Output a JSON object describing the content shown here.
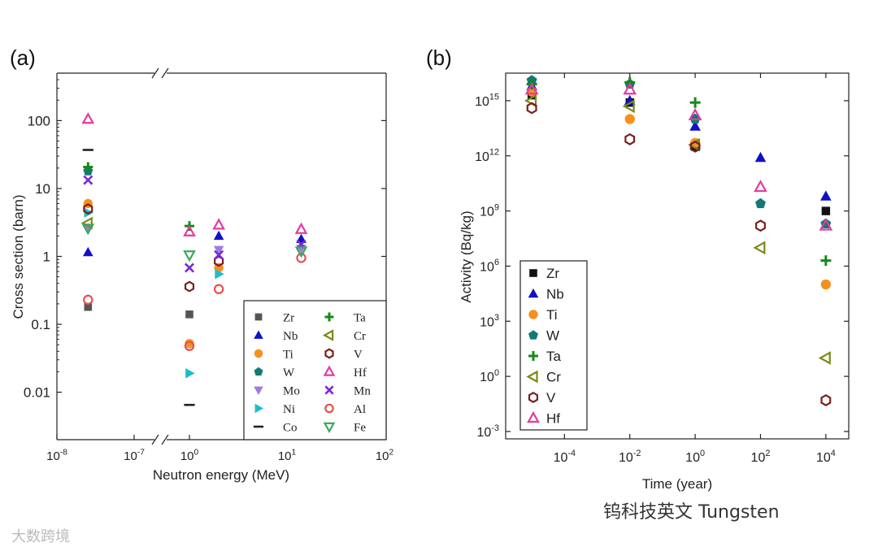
{
  "figure": {
    "panel_a_label": "(a)",
    "panel_b_label": "(b)",
    "watermark_right": "钨科技英文 Tungsten",
    "watermark_left": "大数跨境"
  },
  "chart_data": [
    {
      "type": "scatter",
      "panel": "(a)",
      "xlabel": "Neutron energy (MeV)",
      "ylabel": "Cross section (barn)",
      "xscale": "log (broken axis)",
      "yscale": "log",
      "ylim": [
        0.002,
        500
      ],
      "xticks_left": [
        "10^-8",
        "10^-7"
      ],
      "xticks_right": [
        "10^0",
        "10^1",
        "10^2"
      ],
      "yticks": [
        "0.01",
        "0.1",
        "1",
        "10",
        "100"
      ],
      "legend_position": "bottom-right",
      "energies": [
        "2.53e-8",
        "1",
        "2",
        "14"
      ],
      "series": [
        {
          "name": "Zr",
          "marker": "square",
          "color": "#555555",
          "values": [
            0.18,
            0.14,
            null,
            null
          ]
        },
        {
          "name": "Nb",
          "marker": "triangle-up",
          "color": "#1010c8",
          "values": [
            1.15,
            null,
            2.0,
            1.8
          ]
        },
        {
          "name": "Ti",
          "marker": "circle",
          "color": "#f5901e",
          "values": [
            6.0,
            0.052,
            0.68,
            null
          ]
        },
        {
          "name": "W",
          "marker": "pentagon",
          "color": "#127a73",
          "values": [
            18,
            null,
            null,
            null
          ]
        },
        {
          "name": "Mo",
          "marker": "triangle-down",
          "color": "#a07ae0",
          "values": [
            2.5,
            null,
            1.25,
            1.3
          ]
        },
        {
          "name": "Ni",
          "marker": "triangle-right",
          "color": "#20bcc8",
          "values": [
            4.4,
            0.019,
            0.55,
            null
          ]
        },
        {
          "name": "Co",
          "marker": "dash",
          "color": "#222222",
          "values": [
            37,
            0.0065,
            null,
            null
          ]
        },
        {
          "name": "Ta",
          "marker": "plus",
          "color": "#148a14",
          "values": [
            20.7,
            2.8,
            null,
            null
          ]
        },
        {
          "name": "Cr",
          "marker": "triangle-left-open",
          "color": "#7a8a14",
          "values": [
            3.1,
            null,
            null,
            null
          ]
        },
        {
          "name": "V",
          "marker": "hexagon-open",
          "color": "#7a1e1e",
          "values": [
            5.0,
            0.36,
            0.85,
            null
          ]
        },
        {
          "name": "Hf",
          "marker": "triangle-up-open",
          "color": "#e43aa0",
          "values": [
            105,
            2.3,
            2.9,
            2.5
          ]
        },
        {
          "name": "Mn",
          "marker": "cross",
          "color": "#7a2ad4",
          "values": [
            13.3,
            0.68,
            1.05,
            1.5
          ]
        },
        {
          "name": "Al",
          "marker": "circle-open",
          "color": "#e85050",
          "values": [
            0.23,
            0.048,
            0.33,
            0.95
          ]
        },
        {
          "name": "Fe",
          "marker": "triangle-down-open",
          "color": "#3aa860",
          "values": [
            2.6,
            1.05,
            null,
            1.2
          ]
        }
      ]
    },
    {
      "type": "scatter",
      "panel": "(b)",
      "xlabel": "Time (year)",
      "ylabel": "Activity (Bq/kg)",
      "xscale": "log",
      "yscale": "log",
      "xlim_exp": [
        -5.8,
        4.7
      ],
      "ylim_exp": [
        -3.4,
        16.5
      ],
      "xticks": [
        "10^-4",
        "10^-2",
        "10^0",
        "10^2",
        "10^4"
      ],
      "yticks": [
        "10^-3",
        "10^0",
        "10^3",
        "10^6",
        "10^9",
        "10^12",
        "10^15"
      ],
      "legend_position": "bottom-left",
      "x_exp": [
        -5,
        -2,
        0,
        2,
        4
      ],
      "series": [
        {
          "name": "Zr",
          "marker": "square",
          "color": "#111111",
          "values_exp": [
            15.3,
            14.9,
            12.5,
            null,
            9.0
          ]
        },
        {
          "name": "Nb",
          "marker": "triangle-up",
          "color": "#1010c8",
          "values_exp": [
            15.8,
            15.0,
            13.6,
            11.9,
            9.8
          ]
        },
        {
          "name": "Ti",
          "marker": "circle",
          "color": "#f5901e",
          "values_exp": [
            15.5,
            14.0,
            12.7,
            null,
            5.0
          ]
        },
        {
          "name": "W",
          "marker": "pentagon",
          "color": "#127a73",
          "values_exp": [
            16.1,
            15.9,
            14.0,
            9.4,
            8.3
          ]
        },
        {
          "name": "Ta",
          "marker": "plus",
          "color": "#148a14",
          "values_exp": [
            15.9,
            16.0,
            14.9,
            null,
            6.3
          ]
        },
        {
          "name": "Cr",
          "marker": "triangle-left-open",
          "color": "#7a8a14",
          "values_exp": [
            15.0,
            14.7,
            12.6,
            7.0,
            1.0
          ]
        },
        {
          "name": "V",
          "marker": "hexagon-open",
          "color": "#7a1e1e",
          "values_exp": [
            14.6,
            12.9,
            12.5,
            8.2,
            -1.3
          ]
        },
        {
          "name": "Hf",
          "marker": "triangle-up-open",
          "color": "#e43aa0",
          "values_exp": [
            15.6,
            15.6,
            14.2,
            10.3,
            8.2
          ]
        }
      ]
    }
  ]
}
